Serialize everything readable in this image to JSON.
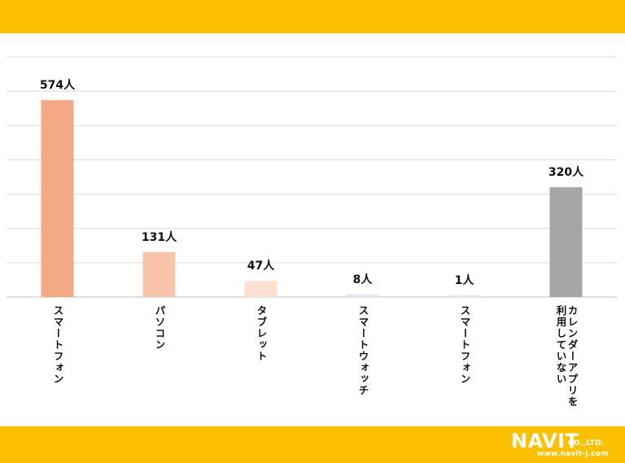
{
  "brand": {
    "name": "NAVIT",
    "suffix": "CO.,LTD.",
    "url": "www.navit-j.com"
  },
  "colors": {
    "accent_bar": "#FDC000",
    "grid": "#D9D9D9",
    "axis": "#BFBFBF"
  },
  "chart_data": {
    "type": "bar",
    "categories": [
      "スマートフォン",
      "パソコン",
      "タブレット",
      "スマートウォッチ",
      "スマートフォン",
      "カレンダーアプリを利用していない"
    ],
    "values": [
      574,
      131,
      47,
      8,
      1,
      320
    ],
    "value_labels": [
      "574人",
      "131人",
      "47人",
      "8人",
      "1人",
      "320人"
    ],
    "bar_colors": [
      "#F4A985",
      "#F8C5AC",
      "#FBE0D2",
      "#DCE8F5",
      "#DDE9F6",
      "#A6A6A6"
    ],
    "ylim": [
      0,
      700
    ],
    "grid": true,
    "title": "",
    "xlabel": "",
    "ylabel": ""
  }
}
